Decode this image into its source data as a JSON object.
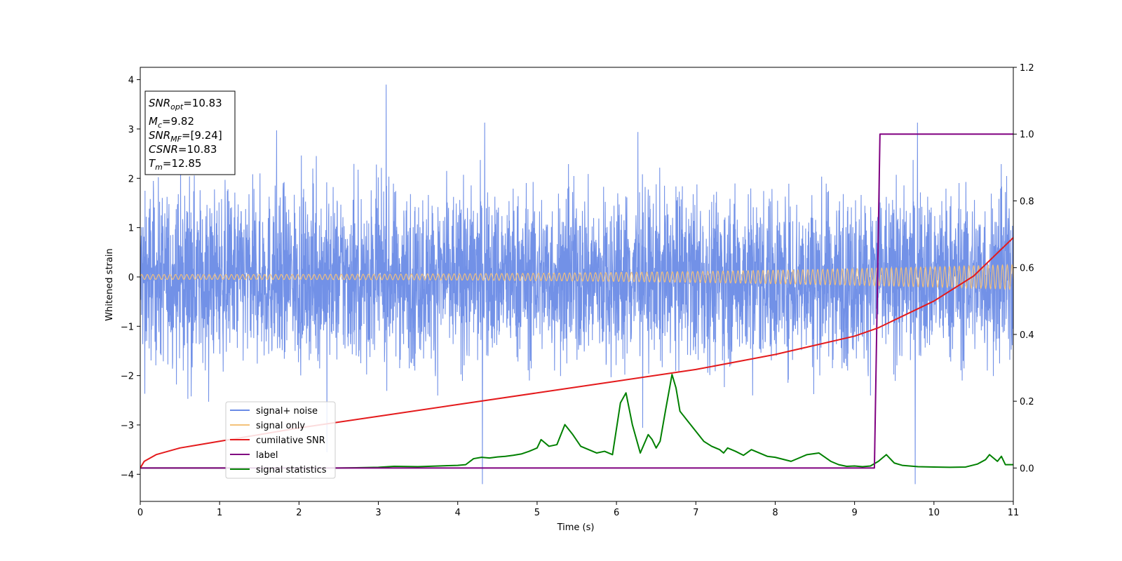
{
  "chart_data": {
    "type": "line",
    "xlabel": "Time (s)",
    "ylabel": "Whitened strain",
    "x_range": [
      0,
      11
    ],
    "y_range": [
      -4.55,
      4.25
    ],
    "y2_range": [
      -0.1,
      1.2
    ],
    "x_ticks": [
      0,
      1,
      2,
      3,
      4,
      5,
      6,
      7,
      8,
      9,
      10,
      11
    ],
    "y_ticks": [
      4,
      3,
      2,
      1,
      0,
      -1,
      -2,
      -3,
      -4
    ],
    "y_tick_labels": [
      "4",
      "3",
      "2",
      "1",
      "0",
      "−1",
      "−2",
      "−3",
      "−4"
    ],
    "y2_ticks": [
      1.2,
      1.0,
      0.8,
      0.6,
      0.4,
      0.2,
      0.0
    ],
    "y2_tick_labels": [
      "1.2",
      "1.0",
      "0.8",
      "0.6",
      "0.4",
      "0.2",
      "0.0"
    ],
    "grid": false,
    "legend_position": "lower-left",
    "info_box": [
      {
        "base": "SNR",
        "sub": "opt",
        "value": "=10.83"
      },
      {
        "base": "M",
        "sub": "c",
        "value": "=9.82"
      },
      {
        "base": "SNR",
        "sub": "MF",
        "value": "=[9.24]"
      },
      {
        "base": "CSNR",
        "sub": "",
        "value": "=10.83"
      },
      {
        "base": "T",
        "sub": "m",
        "value": "=12.85"
      }
    ],
    "series": [
      {
        "name": "signal+ noise",
        "color": "#6a8be6",
        "axis": "left",
        "description": "noisy whitened strain, amplitude roughly within [-4.2, 3.9]"
      },
      {
        "name": "signal only",
        "color": "#f4c27a",
        "axis": "left",
        "description": "chirp oscillation, amplitude growing from ~0.05 to ~0.25"
      },
      {
        "name": "cumilative SNR",
        "color": "#e41a1c",
        "axis": "right",
        "x": [
          0,
          0.05,
          0.2,
          0.5,
          1,
          2,
          3,
          4,
          5,
          6,
          7,
          8,
          9,
          9.3,
          10,
          10.5,
          11
        ],
        "y": [
          0.0,
          0.02,
          0.04,
          0.06,
          0.08,
          0.12,
          0.155,
          0.19,
          0.225,
          0.26,
          0.295,
          0.34,
          0.395,
          0.42,
          0.5,
          0.575,
          0.69
        ]
      },
      {
        "name": "label",
        "color": "#800080",
        "axis": "right",
        "x": [
          0,
          9.25,
          9.32,
          11
        ],
        "y": [
          0.0,
          0.0,
          1.0,
          1.0
        ]
      },
      {
        "name": "signal statistics",
        "color": "#008000",
        "axis": "right",
        "x": [
          0,
          2.5,
          3.0,
          3.2,
          3.5,
          4.0,
          4.1,
          4.2,
          4.3,
          4.4,
          4.5,
          4.6,
          4.7,
          4.8,
          4.9,
          5.0,
          5.05,
          5.15,
          5.25,
          5.35,
          5.45,
          5.55,
          5.65,
          5.75,
          5.85,
          5.95,
          6.05,
          6.12,
          6.2,
          6.3,
          6.4,
          6.45,
          6.5,
          6.55,
          6.62,
          6.7,
          6.75,
          6.8,
          6.9,
          7.0,
          7.1,
          7.2,
          7.3,
          7.35,
          7.4,
          7.5,
          7.6,
          7.7,
          7.8,
          7.9,
          8.0,
          8.2,
          8.4,
          8.55,
          8.7,
          8.8,
          8.9,
          9.0,
          9.1,
          9.2,
          9.3,
          9.4,
          9.5,
          9.6,
          9.8,
          10.0,
          10.2,
          10.4,
          10.55,
          10.65,
          10.7,
          10.75,
          10.8,
          10.85,
          10.9,
          11.0
        ],
        "y": [
          0.0,
          0.0,
          0.002,
          0.005,
          0.004,
          0.008,
          0.01,
          0.028,
          0.032,
          0.03,
          0.033,
          0.035,
          0.038,
          0.042,
          0.05,
          0.06,
          0.085,
          0.065,
          0.07,
          0.13,
          0.1,
          0.065,
          0.055,
          0.045,
          0.05,
          0.04,
          0.195,
          0.225,
          0.13,
          0.045,
          0.1,
          0.085,
          0.06,
          0.08,
          0.175,
          0.28,
          0.24,
          0.17,
          0.14,
          0.11,
          0.08,
          0.065,
          0.055,
          0.045,
          0.06,
          0.05,
          0.038,
          0.055,
          0.045,
          0.035,
          0.032,
          0.02,
          0.04,
          0.045,
          0.02,
          0.01,
          0.005,
          0.006,
          0.004,
          0.006,
          0.02,
          0.04,
          0.015,
          0.008,
          0.004,
          0.003,
          0.002,
          0.003,
          0.012,
          0.025,
          0.04,
          0.03,
          0.02,
          0.035,
          0.01,
          0.01
        ]
      }
    ]
  }
}
